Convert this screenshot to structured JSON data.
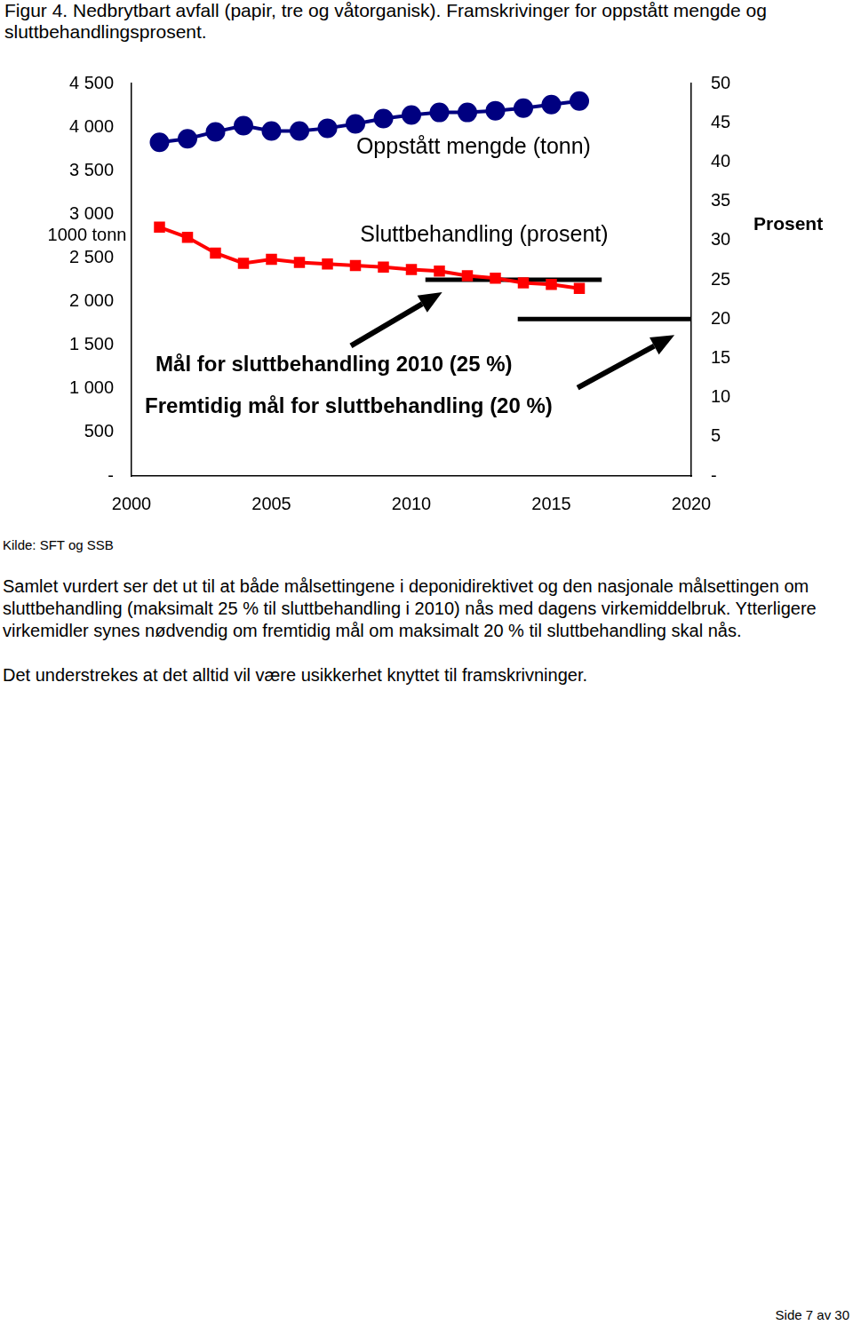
{
  "caption": "Figur 4. Nedbrytbart avfall (papir, tre og våtorganisk). Framskrivinger for oppstått mengde og sluttbehandlingsprosent.",
  "chart_data": {
    "type": "line",
    "x": [
      2001,
      2002,
      2003,
      2004,
      2005,
      2006,
      2007,
      2008,
      2009,
      2010,
      2011,
      2012,
      2013,
      2014,
      2015,
      2016
    ],
    "xlim": [
      2000,
      2020
    ],
    "xticks": [
      2000,
      2005,
      2010,
      2015,
      2020
    ],
    "ylim": [
      0,
      4500
    ],
    "yticks": [
      {
        "value": 0,
        "label": "-"
      },
      {
        "value": 500,
        "label": "500"
      },
      {
        "value": 1000,
        "label": "1 000"
      },
      {
        "value": 1500,
        "label": "1 500"
      },
      {
        "value": 2000,
        "label": "2 000"
      },
      {
        "value": 2500,
        "label": "2 500"
      },
      {
        "value": 3000,
        "label": "3 000"
      },
      {
        "value": 3500,
        "label": "3 500"
      },
      {
        "value": 4000,
        "label": "4 000"
      },
      {
        "value": 4500,
        "label": "4 500"
      }
    ],
    "y2lim": [
      0,
      50
    ],
    "y2ticks": [
      {
        "value": 0,
        "label": "-"
      },
      5,
      10,
      15,
      20,
      25,
      30,
      35,
      40,
      45,
      50
    ],
    "y_label": "1000 tonn",
    "y2_label": "Prosent",
    "grid": false,
    "series": [
      {
        "name": "Oppstått mengde (tonn)",
        "color": "#000080",
        "marker": "circle",
        "values": [
          3825,
          3866,
          3946,
          4017,
          3956,
          3956,
          3987,
          4037,
          4097,
          4138,
          4168,
          4168,
          4188,
          4218,
          4258,
          4299
        ]
      },
      {
        "name": "Sluttbehandling (prosent)",
        "color": "#ff0000",
        "marker": "square",
        "axis": "y2",
        "values": [
          31.7,
          30.4,
          28.4,
          27.1,
          27.6,
          27.2,
          27.0,
          26.8,
          26.6,
          26.3,
          26.1,
          25.5,
          25.2,
          24.6,
          24.4,
          23.9
        ]
      }
    ],
    "annotations": [
      {
        "text": "Mål for sluttbehandling 2010 (25 %)",
        "x": [
          2010.5,
          2016.8
        ],
        "y": 25,
        "axis": "y2",
        "color": "#000000"
      },
      {
        "text": "Fremtidig mål for sluttbehandling (20 %)",
        "x": [
          2013.8,
          2020
        ],
        "y": 20,
        "axis": "y2",
        "color": "#000000"
      }
    ]
  },
  "source": "Kilde: SFT og SSB",
  "paragraphs": [
    "Samlet vurdert ser det ut til at både målsettingene i deponidirektivet og den nasjonale målsettingen om sluttbehandling (maksimalt 25 % til sluttbehandling i 2010) nås med dagens virkemiddelbruk. Ytterligere virkemidler synes nødvendig om fremtidig mål om maksimalt 20 % til sluttbehandling skal nås.",
    "Det understrekes at det alltid vil være usikkerhet knyttet til framskrivninger."
  ],
  "footer": "Side 7 av 30"
}
